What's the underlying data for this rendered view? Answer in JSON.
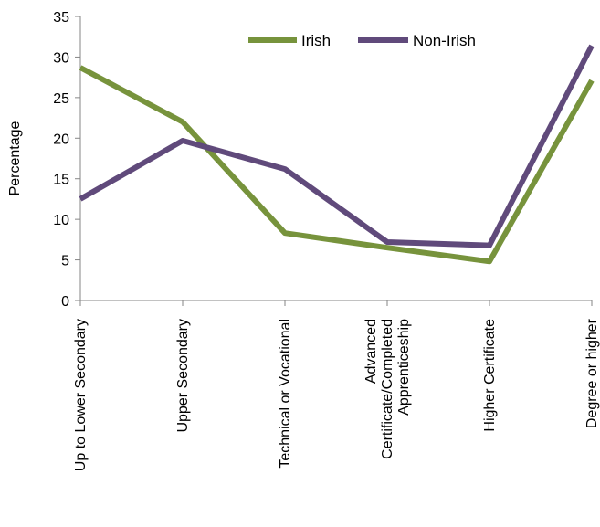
{
  "chart_data": {
    "type": "line",
    "title": "",
    "xlabel": "",
    "ylabel": "Percentage",
    "ylim": [
      0,
      35
    ],
    "yticks": [
      0,
      5,
      10,
      15,
      20,
      25,
      30,
      35
    ],
    "grid": false,
    "legend_position": "top-right",
    "categories": [
      [
        "Up to Lower Secondary"
      ],
      [
        "Upper Secondary"
      ],
      [
        "Technical or Vocational"
      ],
      [
        "Advanced",
        "Certificate/Completed",
        "Apprenticeship"
      ],
      [
        "Higher Certificate"
      ],
      [
        "Degree or higher"
      ]
    ],
    "series": [
      {
        "name": "Irish",
        "color": "#77933C",
        "values": [
          28.7,
          22.0,
          8.3,
          6.5,
          4.8,
          27.1
        ]
      },
      {
        "name": "Non-Irish",
        "color": "#604A7B",
        "values": [
          12.5,
          19.7,
          16.2,
          7.2,
          6.8,
          31.4
        ]
      }
    ]
  }
}
